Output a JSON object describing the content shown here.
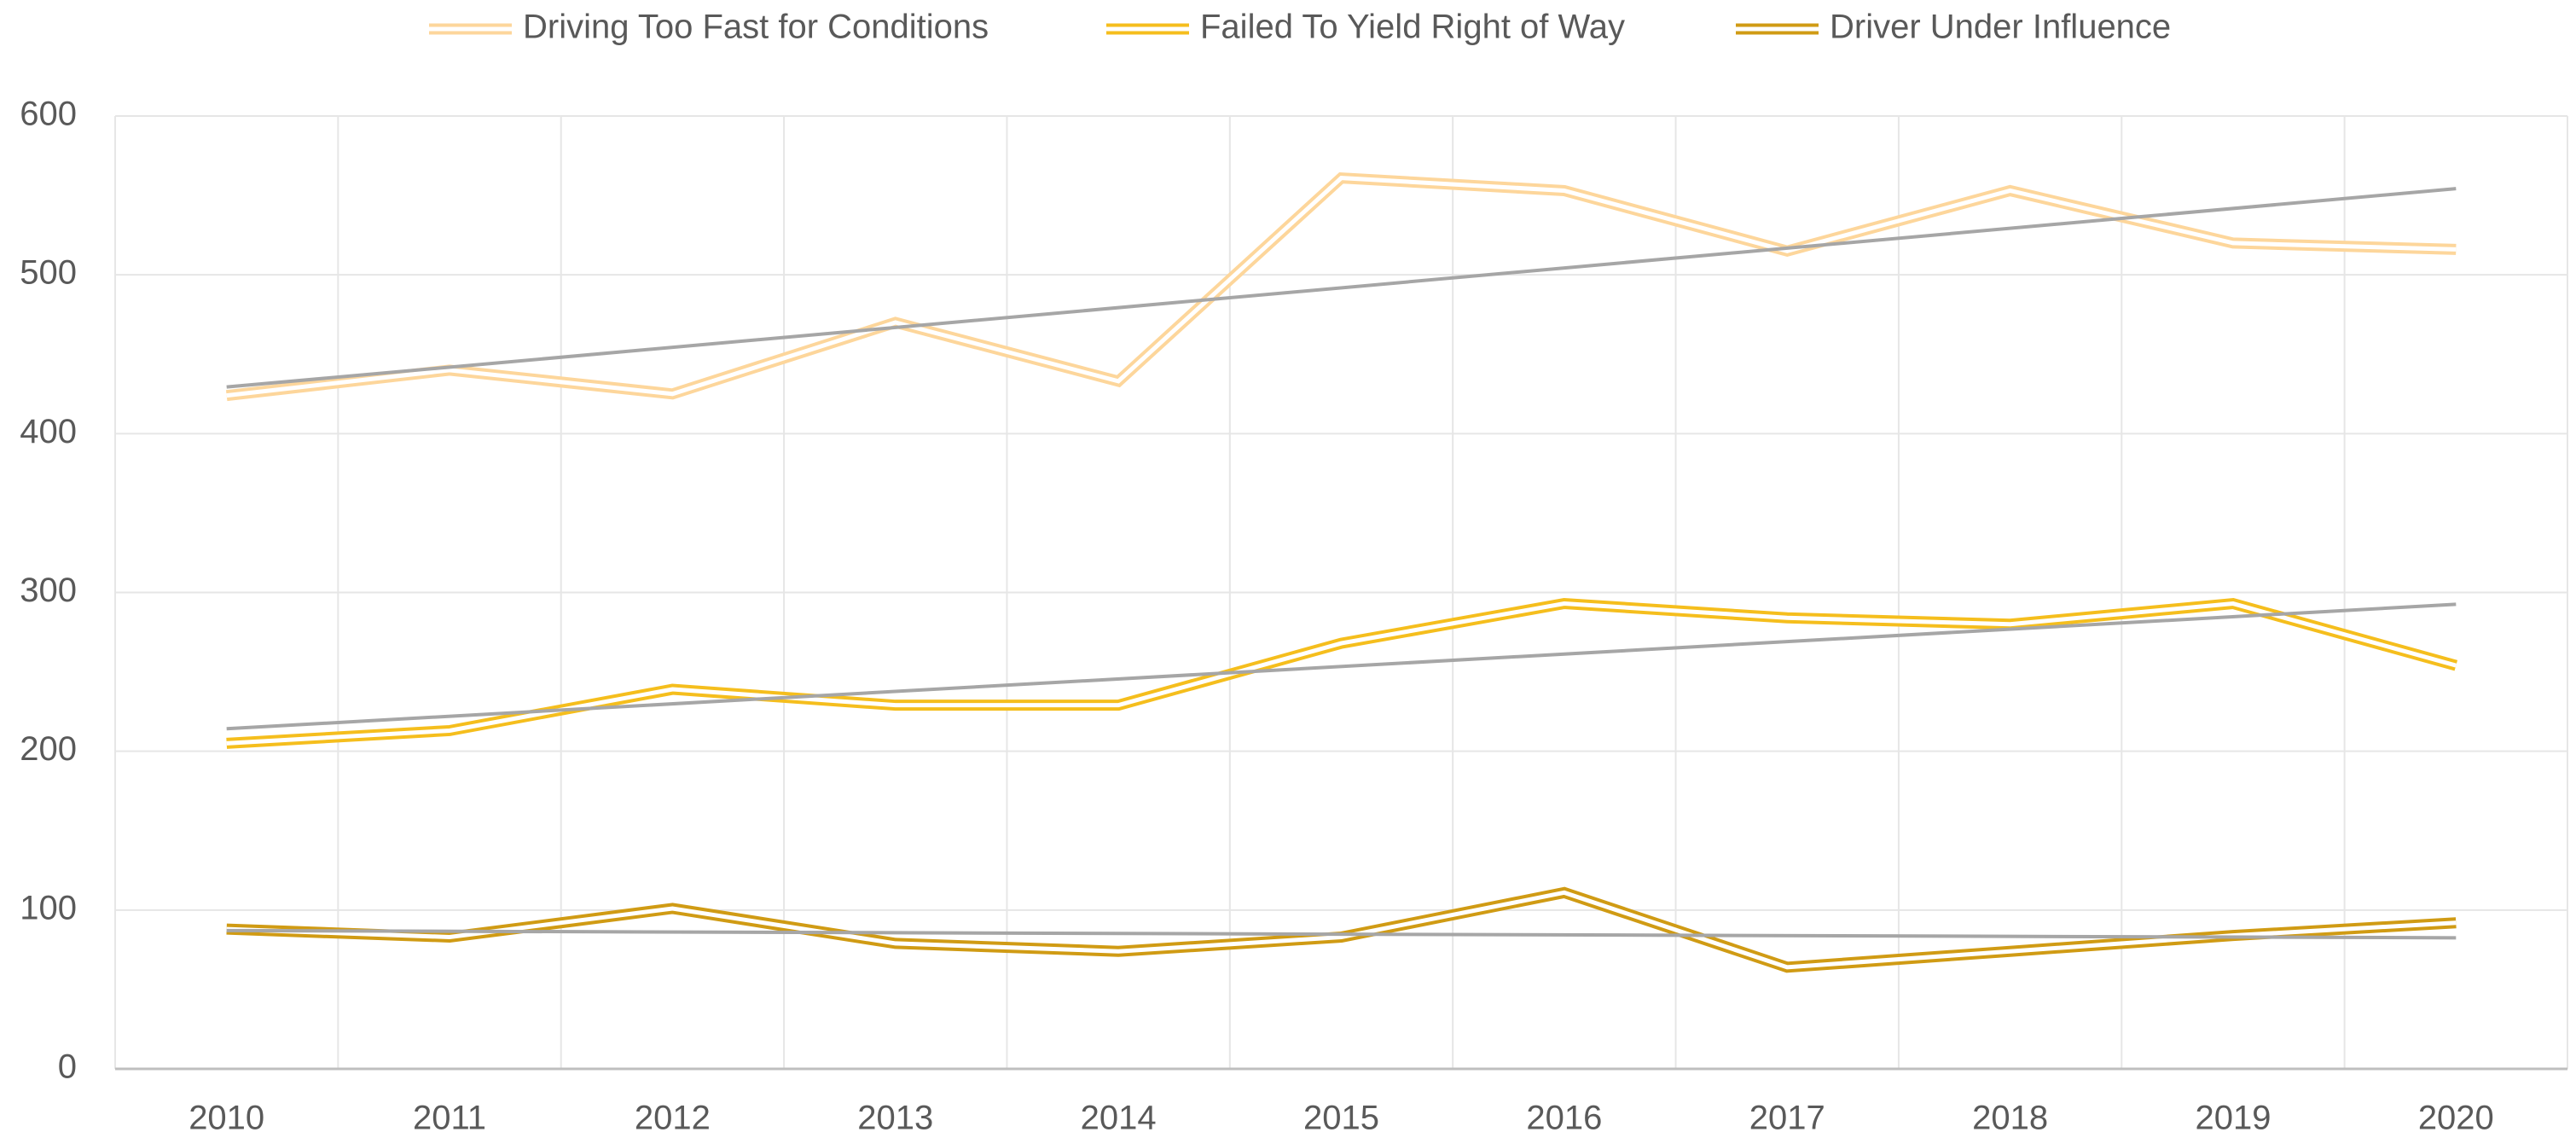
{
  "chart_data": {
    "type": "line",
    "categories": [
      "2010",
      "2011",
      "2012",
      "2013",
      "2014",
      "2015",
      "2016",
      "2017",
      "2018",
      "2019",
      "2020"
    ],
    "series": [
      {
        "name": "Driving Too Fast for Conditions",
        "color": "#fdd69b",
        "values": [
          424,
          440,
          425,
          470,
          433,
          561,
          553,
          515,
          553,
          520,
          516
        ]
      },
      {
        "name": "Failed To Yield Right of Way",
        "color": "#f5be1d",
        "values": [
          205,
          213,
          239,
          229,
          229,
          268,
          293,
          284,
          280,
          293,
          254
        ]
      },
      {
        "name": "Driver Under Influence",
        "color": "#d09b14",
        "values": [
          88,
          83,
          101,
          79,
          74,
          83,
          111,
          64,
          74,
          84,
          92
        ]
      }
    ],
    "ylim": [
      0,
      600
    ],
    "yticks": [
      0,
      100,
      200,
      300,
      400,
      500,
      600
    ],
    "grid": true,
    "trendline": true,
    "trendline_color": "#a6a6a6",
    "legend": "top"
  }
}
